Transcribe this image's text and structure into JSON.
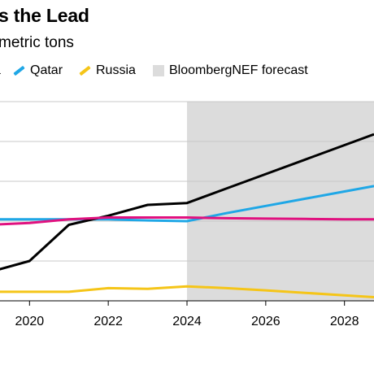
{
  "header": {
    "title": "s the Lead",
    "subtitle": "metric tons"
  },
  "legend": [
    {
      "label": "a",
      "color": "#000000",
      "kind": "line"
    },
    {
      "label": "Qatar",
      "color": "#1fa7e6",
      "kind": "line"
    },
    {
      "label": "Russia",
      "color": "#f5c518",
      "kind": "line"
    },
    {
      "label": "BloombergNEF forecast",
      "color": "#dcdcdc",
      "kind": "box"
    }
  ],
  "chart_data": {
    "type": "line",
    "title": "s the Lead",
    "subtitle": "metric tons",
    "xlabel": "",
    "ylabel": "",
    "x_ticks": [
      2020,
      2022,
      2024,
      2026,
      2028
    ],
    "xlim": [
      2019.25,
      2028.75
    ],
    "ylim": [
      0,
      5.5
    ],
    "grid": true,
    "legend_position": "top",
    "forecast_region": {
      "label": "BloombergNEF forecast",
      "start": 2024,
      "end": 2028.75,
      "color": "#dcdcdc"
    },
    "series": [
      {
        "name": "",
        "color": "#000000",
        "x": [
          2019,
          2020,
          2021,
          2022,
          2023,
          2024,
          2025,
          2026,
          2027,
          2028,
          2028.75
        ],
        "y": [
          0.8,
          1.1,
          2.1,
          2.35,
          2.65,
          2.7,
          3.1,
          3.5,
          3.9,
          4.3,
          4.6
        ]
      },
      {
        "name": "Qatar",
        "color": "#1fa7e6",
        "x": [
          2019,
          2020,
          2021,
          2022,
          2023,
          2024,
          2025,
          2026,
          2027,
          2028,
          2028.75
        ],
        "y": [
          2.25,
          2.25,
          2.25,
          2.25,
          2.22,
          2.2,
          2.42,
          2.62,
          2.82,
          3.02,
          3.17
        ]
      },
      {
        "name": "",
        "color": "#e0117f",
        "x": [
          2019,
          2020,
          2021,
          2022,
          2023,
          2024,
          2025,
          2026,
          2027,
          2028,
          2028.75
        ],
        "y": [
          2.1,
          2.15,
          2.25,
          2.3,
          2.3,
          2.3,
          2.28,
          2.27,
          2.26,
          2.25,
          2.25
        ]
      },
      {
        "name": "Russia",
        "color": "#f5c518",
        "x": [
          2019,
          2020,
          2021,
          2022,
          2023,
          2024,
          2025,
          2026,
          2027,
          2028,
          2028.75
        ],
        "y": [
          0.25,
          0.25,
          0.25,
          0.35,
          0.33,
          0.4,
          0.35,
          0.29,
          0.22,
          0.15,
          0.1
        ]
      }
    ]
  }
}
